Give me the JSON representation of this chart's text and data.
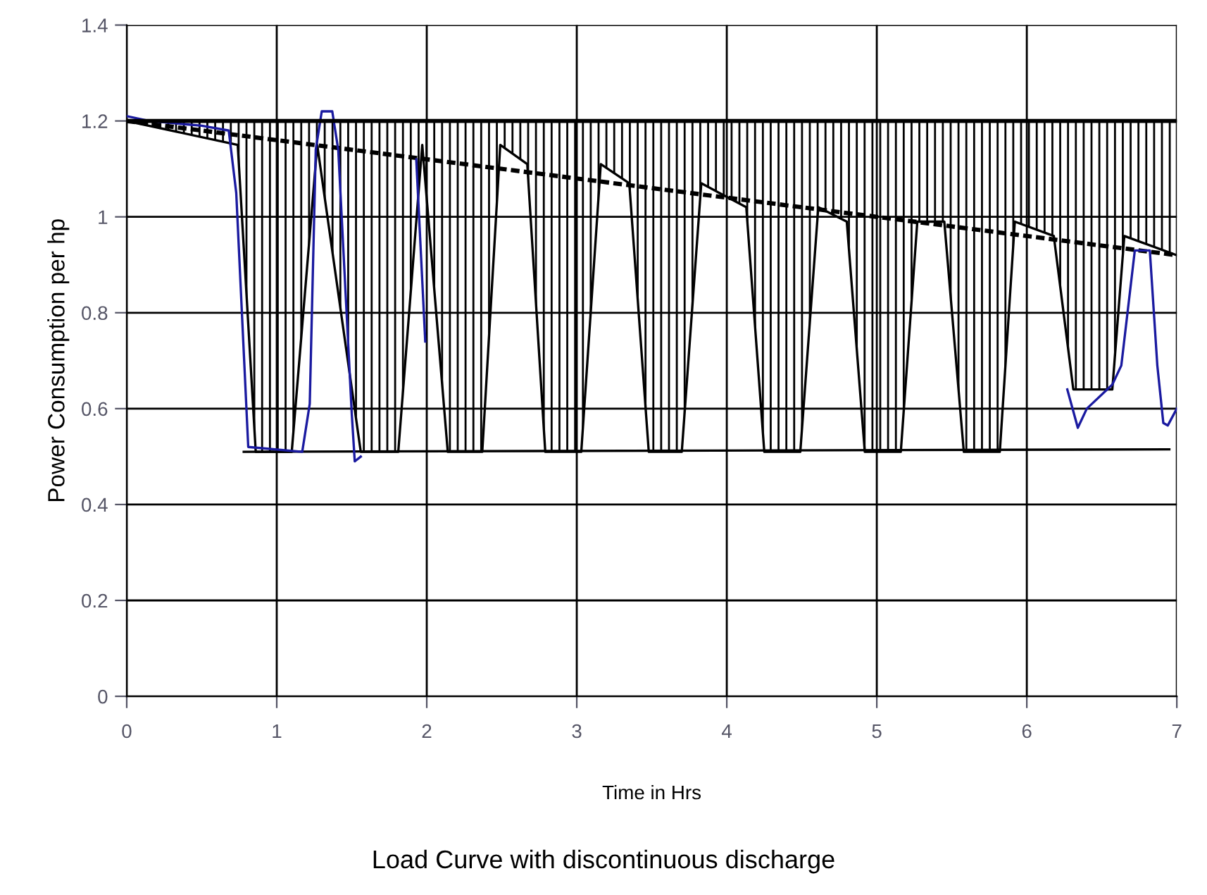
{
  "chart_data": {
    "type": "line",
    "title": "Load Curve with discontinuous discharge",
    "xlabel": "Time in Hrs",
    "ylabel": "Power Consumption per hp",
    "xlim": [
      0,
      7
    ],
    "ylim": [
      0,
      1.4
    ],
    "xticks": [
      0,
      1,
      2,
      3,
      4,
      5,
      6,
      7
    ],
    "yticks": [
      0,
      0.2,
      0.4,
      0.6,
      0.8,
      1,
      1.2,
      1.4
    ],
    "grid": true,
    "legend": false,
    "marker": "none",
    "ref_lines": [
      {
        "axis": "y",
        "value": 1.2,
        "color": "#000000",
        "line_style": "solid"
      }
    ],
    "series": [
      {
        "color": "#000000",
        "line_style": "solid",
        "x": [
          0,
          0.74,
          0.86,
          1.1,
          1.27,
          1.56,
          1.81,
          1.97,
          2.14,
          2.37,
          2.49,
          2.67,
          2.79,
          3.03,
          3.16,
          3.35,
          3.48,
          3.7,
          3.83,
          4.13,
          4.25,
          4.49,
          4.61,
          4.8,
          4.92,
          5.16,
          5.27,
          5.45,
          5.58,
          5.82,
          5.92,
          6.18,
          6.31,
          6.57,
          6.65,
          7
        ],
        "values": [
          1.2,
          1.15,
          0.51,
          0.51,
          1.15,
          0.51,
          0.51,
          1.15,
          0.51,
          0.51,
          1.15,
          1.11,
          0.51,
          0.51,
          1.11,
          1.07,
          0.51,
          0.51,
          1.07,
          1.02,
          0.51,
          0.51,
          1.02,
          0.99,
          0.51,
          0.51,
          0.99,
          0.99,
          0.51,
          0.51,
          0.99,
          0.96,
          0.64,
          0.64,
          0.96,
          0.92
        ]
      },
      {
        "color": "#000000",
        "line_style": "dashed",
        "x": [
          0,
          7
        ],
        "values": [
          1.2,
          0.92
        ]
      },
      {
        "color": "#000000",
        "line_style": "solid",
        "x": [
          0.78,
          6.95
        ],
        "values": [
          0.51,
          0.515
        ]
      },
      {
        "color": "#1a1aa0",
        "line_style": "solid",
        "x": [
          0,
          0.15,
          0.5,
          0.68,
          0.73,
          0.81,
          1.17,
          1.22,
          1.26,
          1.3,
          1.37,
          1.41,
          1.5,
          1.52,
          1.56
        ],
        "values": [
          1.21,
          1.2,
          1.19,
          1.18,
          1.05,
          0.52,
          0.51,
          0.61,
          1.14,
          1.22,
          1.22,
          1.14,
          0.59,
          0.49,
          0.5
        ]
      },
      {
        "color": "#1a1aa0",
        "line_style": "solid",
        "x": [
          1.93,
          1.99
        ],
        "values": [
          1.12,
          0.74
        ]
      },
      {
        "color": "#1a1aa0",
        "line_style": "solid",
        "x": [
          6.27,
          6.34,
          6.4,
          6.57,
          6.63,
          6.72,
          6.82,
          6.87,
          6.91,
          6.94,
          7.0
        ],
        "values": [
          0.64,
          0.56,
          0.6,
          0.65,
          0.69,
          0.93,
          0.93,
          0.69,
          0.57,
          0.565,
          0.6
        ]
      }
    ]
  }
}
